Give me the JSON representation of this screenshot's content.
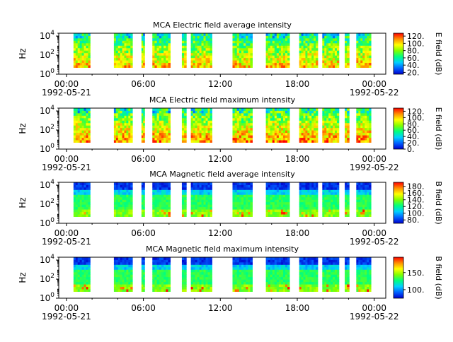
{
  "panels": [
    {
      "title": "MCA  Electric field average intensity",
      "ylabel": "Hz",
      "cbar_label": "E field (dB)",
      "cbar_ticks": [
        20,
        40,
        60,
        80,
        100,
        120
      ],
      "cbar_tick_labels": [
        "20.",
        "40.",
        "60.",
        "80.",
        "100.",
        "120."
      ],
      "cbar_range": [
        15,
        128
      ],
      "kind": "electric"
    },
    {
      "title": "MCA  Electric field maximum intensity",
      "ylabel": "Hz",
      "cbar_label": "E field (dB)",
      "cbar_ticks": [
        0,
        20,
        40,
        60,
        80,
        100,
        120
      ],
      "cbar_tick_labels": [
        "0.",
        "20.",
        "40.",
        "60.",
        "80.",
        "100.",
        "120."
      ],
      "cbar_range": [
        0,
        130
      ],
      "kind": "electric"
    },
    {
      "title": "MCA  Magnetic field average intensity",
      "ylabel": "Hz",
      "cbar_label": "B field (dB)",
      "cbar_ticks": [
        80,
        100,
        120,
        140,
        160,
        180
      ],
      "cbar_tick_labels": [
        "80.",
        "100.",
        "120.",
        "140.",
        "160.",
        "180."
      ],
      "cbar_range": [
        70,
        192
      ],
      "kind": "magnetic"
    },
    {
      "title": "MCA  Magnetic field maximum intensity",
      "ylabel": "Hz",
      "cbar_label": "B field (dB)",
      "cbar_ticks": [
        100,
        150
      ],
      "cbar_tick_labels": [
        "100.",
        "150."
      ],
      "cbar_range": [
        75,
        195
      ],
      "kind": "magnetic"
    }
  ],
  "x_ticks": [
    {
      "label": "00:00",
      "date": "1992-05-21",
      "hour": 0
    },
    {
      "label": "06:00",
      "date": "",
      "hour": 6
    },
    {
      "label": "12:00",
      "date": "",
      "hour": 12
    },
    {
      "label": "18:00",
      "date": "",
      "hour": 18
    },
    {
      "label": "00:00",
      "date": "1992-05-22",
      "hour": 24
    }
  ],
  "chart_data": {
    "type": "heatmap",
    "x_unit": "UT hour (1992-05-21)",
    "xlim": [
      -0.6,
      24.9
    ],
    "y_scale": "log",
    "ylim_hz": [
      1,
      20000
    ],
    "y_tick_labels": [
      "10^0",
      "10^2",
      "10^4"
    ],
    "data_segments_hours": [
      [
        0.55,
        1.85
      ],
      [
        3.7,
        5.15
      ],
      [
        5.85,
        6.1
      ],
      [
        6.7,
        8.1
      ],
      [
        9.0,
        9.35
      ],
      [
        9.7,
        11.35
      ],
      [
        12.95,
        14.5
      ],
      [
        15.55,
        17.4
      ],
      [
        18.15,
        19.6
      ],
      [
        19.95,
        21.25
      ],
      [
        21.7,
        22.05
      ],
      [
        22.6,
        23.75
      ]
    ],
    "freq_range_hz": [
      5,
      20000
    ],
    "colormap": [
      "#0000cc",
      "#0060ff",
      "#00d0ff",
      "#00ff80",
      "#80ff00",
      "#ffff00",
      "#ff9000",
      "#ff0000"
    ]
  }
}
